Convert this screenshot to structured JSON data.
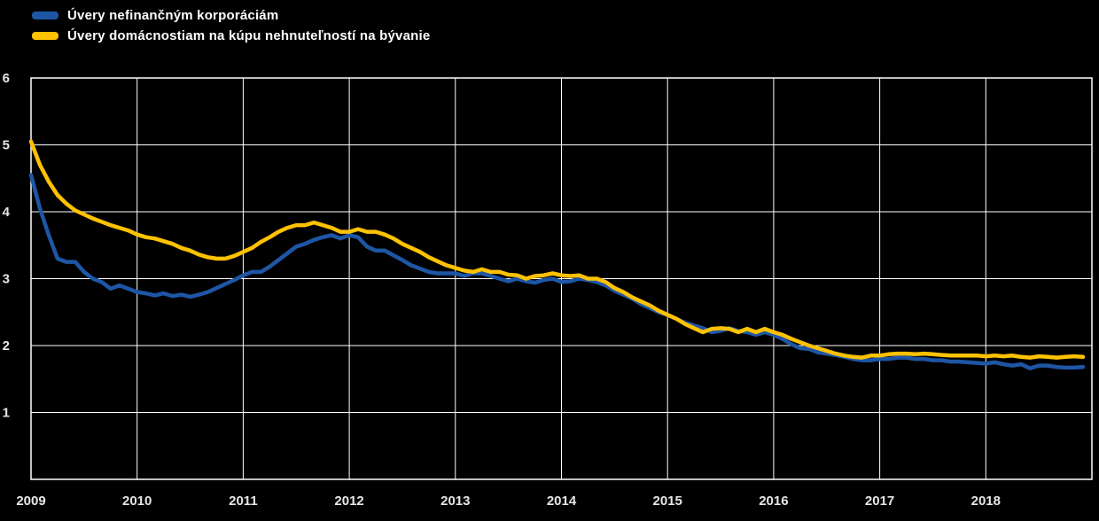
{
  "chart_data": {
    "type": "line",
    "title": "",
    "x_start": "2009-01",
    "frequency": "monthly",
    "x_tick_labels": [
      "2009",
      "2010",
      "2011",
      "2012",
      "2013",
      "2014",
      "2015",
      "2016",
      "2017",
      "2018"
    ],
    "ylim": [
      0,
      6
    ],
    "yticks": [
      1,
      2,
      3,
      4,
      5,
      6
    ],
    "grid": true,
    "background_color": "#000000",
    "grid_color": "#ffffff",
    "axis_text_color": "#e6e6e6",
    "legend_position": "top-left",
    "series": [
      {
        "name": "Úvery nefinančným korporáciám",
        "color": "#1e56a5",
        "values": [
          4.55,
          4.05,
          3.65,
          3.3,
          3.25,
          3.25,
          3.1,
          3.0,
          2.95,
          2.85,
          2.9,
          2.85,
          2.8,
          2.78,
          2.75,
          2.78,
          2.74,
          2.76,
          2.73,
          2.76,
          2.8,
          2.86,
          2.92,
          2.98,
          3.05,
          3.1,
          3.1,
          3.18,
          3.28,
          3.38,
          3.48,
          3.52,
          3.58,
          3.62,
          3.65,
          3.6,
          3.65,
          3.62,
          3.48,
          3.42,
          3.42,
          3.35,
          3.28,
          3.2,
          3.15,
          3.1,
          3.08,
          3.08,
          3.08,
          3.04,
          3.08,
          3.08,
          3.04,
          3.0,
          2.96,
          3.0,
          2.96,
          2.94,
          2.98,
          3.0,
          2.95,
          2.96,
          3.0,
          2.98,
          2.95,
          2.9,
          2.82,
          2.76,
          2.7,
          2.62,
          2.56,
          2.5,
          2.46,
          2.4,
          2.34,
          2.3,
          2.26,
          2.2,
          2.22,
          2.26,
          2.22,
          2.2,
          2.16,
          2.2,
          2.16,
          2.1,
          2.02,
          1.96,
          1.95,
          1.9,
          1.88,
          1.86,
          1.83,
          1.8,
          1.78,
          1.78,
          1.8,
          1.8,
          1.82,
          1.82,
          1.8,
          1.8,
          1.78,
          1.78,
          1.76,
          1.76,
          1.75,
          1.74,
          1.73,
          1.75,
          1.72,
          1.7,
          1.72,
          1.66,
          1.7,
          1.7,
          1.68,
          1.67,
          1.67,
          1.68
        ]
      },
      {
        "name": "Úvery domácnostiam na kúpu nehnuteľností na bývanie",
        "color": "#ffc200",
        "values": [
          5.05,
          4.7,
          4.45,
          4.25,
          4.12,
          4.02,
          3.96,
          3.9,
          3.85,
          3.8,
          3.76,
          3.72,
          3.66,
          3.62,
          3.6,
          3.56,
          3.52,
          3.46,
          3.42,
          3.36,
          3.32,
          3.3,
          3.3,
          3.34,
          3.4,
          3.46,
          3.55,
          3.62,
          3.7,
          3.76,
          3.8,
          3.8,
          3.84,
          3.8,
          3.76,
          3.7,
          3.7,
          3.74,
          3.7,
          3.7,
          3.66,
          3.6,
          3.52,
          3.46,
          3.4,
          3.32,
          3.26,
          3.2,
          3.16,
          3.12,
          3.1,
          3.14,
          3.1,
          3.1,
          3.06,
          3.05,
          3.0,
          3.04,
          3.05,
          3.08,
          3.05,
          3.04,
          3.05,
          3.0,
          3.0,
          2.95,
          2.86,
          2.8,
          2.72,
          2.66,
          2.6,
          2.52,
          2.46,
          2.4,
          2.32,
          2.26,
          2.2,
          2.25,
          2.26,
          2.25,
          2.2,
          2.25,
          2.2,
          2.25,
          2.2,
          2.16,
          2.1,
          2.05,
          2.0,
          1.96,
          1.92,
          1.88,
          1.85,
          1.83,
          1.82,
          1.85,
          1.85,
          1.87,
          1.88,
          1.88,
          1.87,
          1.88,
          1.87,
          1.86,
          1.85,
          1.85,
          1.85,
          1.85,
          1.84,
          1.85,
          1.84,
          1.85,
          1.83,
          1.82,
          1.84,
          1.83,
          1.82,
          1.83,
          1.84,
          1.83
        ]
      }
    ]
  }
}
